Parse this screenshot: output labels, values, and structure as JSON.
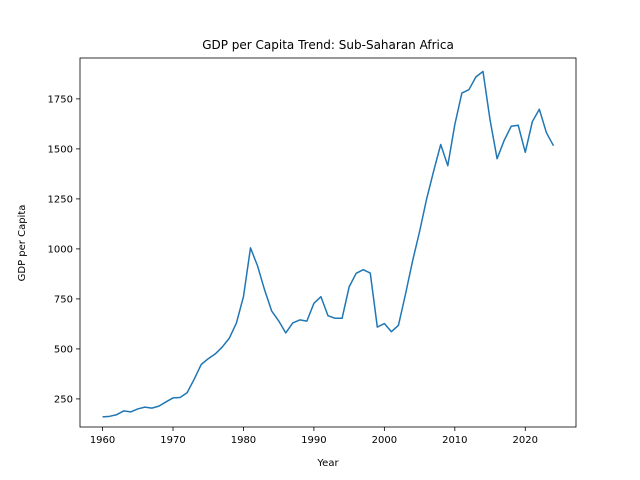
{
  "chart_data": {
    "type": "line",
    "title": "GDP per Capita Trend: Sub-Saharan Africa",
    "xlabel": "Year",
    "ylabel": "GDP per Capita",
    "xlim": [
      1956.8,
      2027.2
    ],
    "ylim": [
      109.6,
      1954.4
    ],
    "xticks": [
      1960,
      1970,
      1980,
      1990,
      2000,
      2010,
      2020
    ],
    "yticks": [
      250,
      500,
      750,
      1000,
      1250,
      1500,
      1750
    ],
    "grid": false,
    "legend": "none",
    "series": [
      {
        "color": "#1f77b4",
        "x": [
          1960,
          1961,
          1962,
          1963,
          1964,
          1965,
          1966,
          1967,
          1968,
          1969,
          1970,
          1971,
          1972,
          1973,
          1974,
          1975,
          1976,
          1977,
          1978,
          1979,
          1980,
          1981,
          1982,
          1983,
          1984,
          1985,
          1986,
          1987,
          1988,
          1989,
          1990,
          1991,
          1992,
          1993,
          1994,
          1995,
          1996,
          1997,
          1998,
          1999,
          2000,
          2001,
          2002,
          2003,
          2004,
          2005,
          2006,
          2007,
          2008,
          2009,
          2010,
          2011,
          2012,
          2013,
          2014,
          2015,
          2016,
          2017,
          2018,
          2019,
          2020,
          2021,
          2022,
          2023,
          2024
        ],
        "values": [
          160,
          163,
          171,
          190,
          185,
          200,
          209,
          204,
          214,
          235,
          255,
          257,
          281,
          348,
          422,
          451,
          475,
          510,
          554,
          629,
          761,
          1005,
          915,
          795,
          690,
          640,
          580,
          630,
          645,
          639,
          728,
          761,
          666,
          653,
          653,
          810,
          878,
          896,
          879,
          609,
          627,
          586,
          618,
          774,
          939,
          1087,
          1250,
          1390,
          1522,
          1416,
          1622,
          1779,
          1796,
          1860,
          1887,
          1645,
          1451,
          1542,
          1613,
          1618,
          1483,
          1636,
          1698,
          1581,
          1516
        ]
      }
    ]
  }
}
